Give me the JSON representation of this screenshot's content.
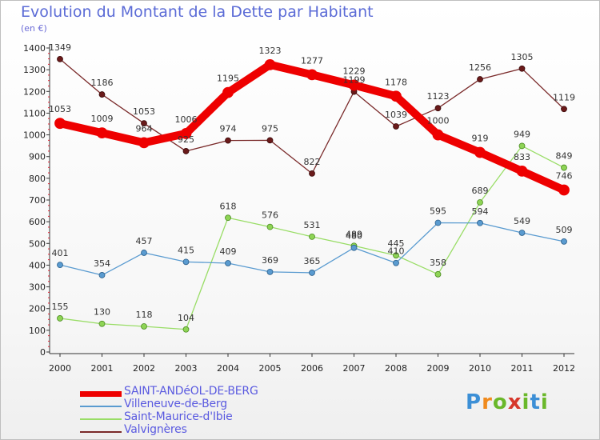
{
  "title": "Evolution du Montant de la Dette par Habitant",
  "unit": "(en €)",
  "logo": "Proxiti",
  "chart_data": {
    "type": "line",
    "title": "Evolution du Montant de la Dette par Habitant",
    "ylabel": "(en €)",
    "ylim": [
      0,
      1400
    ],
    "yticks": [
      0,
      100,
      200,
      300,
      400,
      500,
      600,
      700,
      800,
      900,
      1000,
      1100,
      1200,
      1300,
      1400
    ],
    "grid": false,
    "legend": "bottom-left",
    "categories": [
      "2000",
      "2001",
      "2002",
      "2003",
      "2004",
      "2005",
      "2006",
      "2007",
      "2008",
      "2009",
      "2010",
      "2011",
      "2012"
    ],
    "series": [
      {
        "name": "SAINT-ANDéOL-DE-BERG",
        "color": "#ee0000",
        "values": [
          1053,
          1009,
          964,
          1006,
          1195,
          1323,
          1277,
          1229,
          1178,
          1000,
          919,
          833,
          746
        ]
      },
      {
        "name": "Villeneuve-de-Berg",
        "color": "#5a9bd0",
        "values": [
          401,
          354,
          457,
          415,
          409,
          369,
          365,
          480,
          410,
          595,
          594,
          549,
          509
        ]
      },
      {
        "name": "Saint-Maurice-d'Ibie",
        "color": "#99dd66",
        "values": [
          155,
          130,
          118,
          104,
          618,
          576,
          531,
          489,
          445,
          358,
          689,
          949,
          849
        ]
      },
      {
        "name": "Valvignères",
        "color": "#7a2a2a",
        "values": [
          1349,
          1186,
          1053,
          925,
          974,
          975,
          822,
          1199,
          1039,
          1123,
          1256,
          1305,
          1119
        ]
      }
    ]
  }
}
